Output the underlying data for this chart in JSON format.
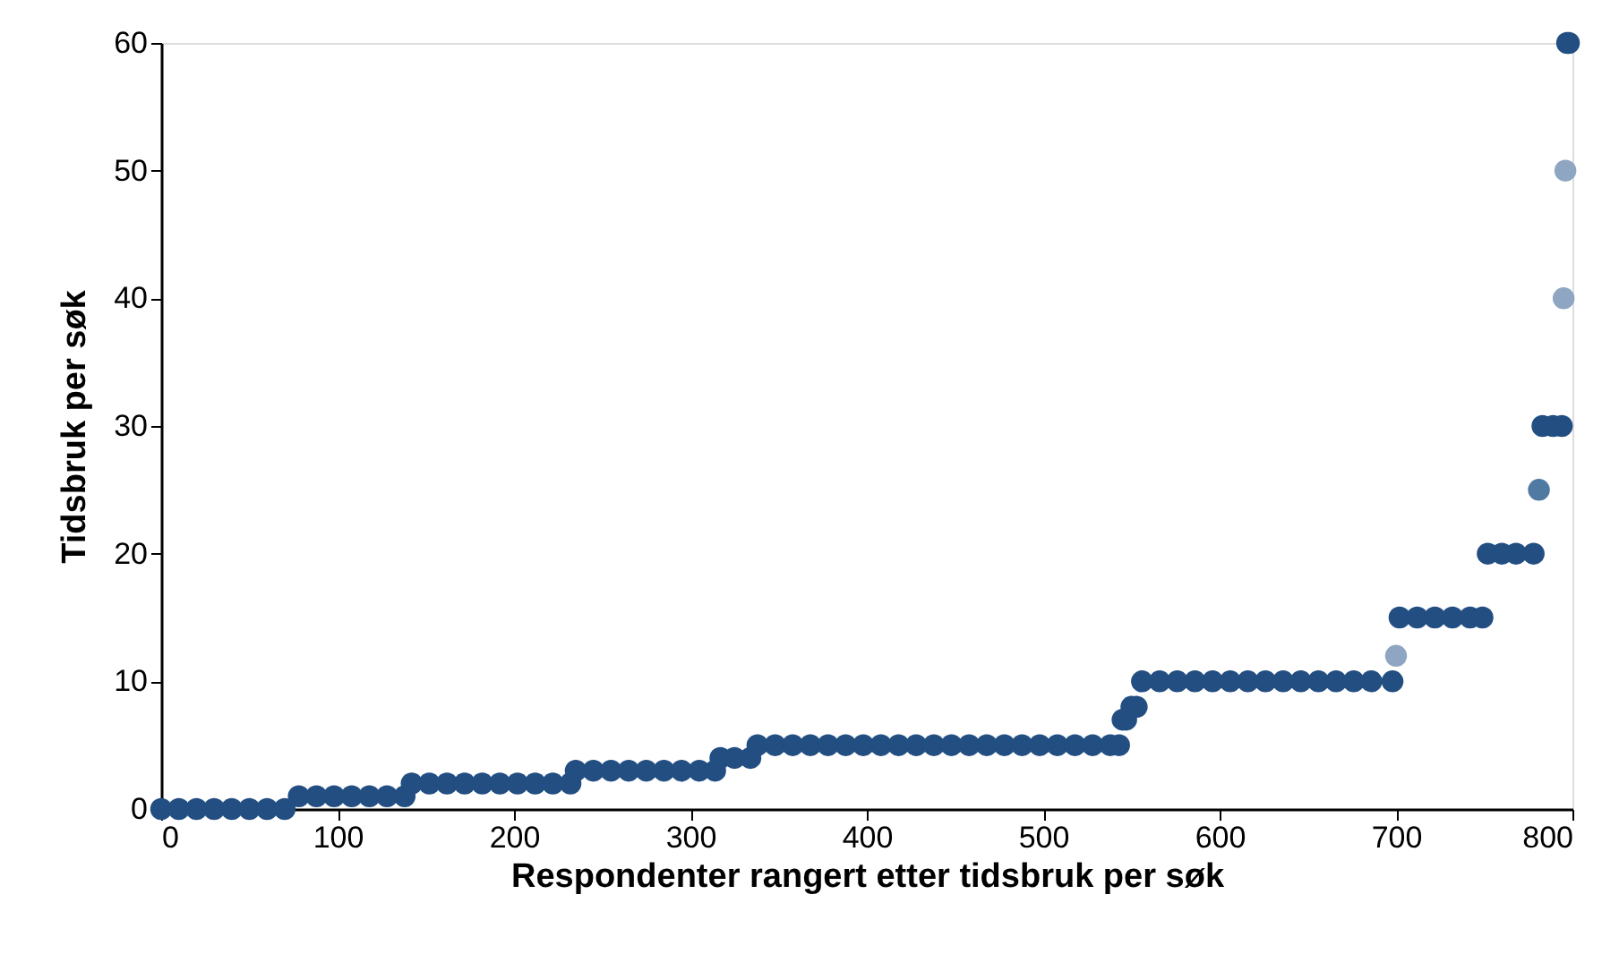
{
  "chart_data": {
    "type": "scatter",
    "xlabel": "Respondenter rangert etter tidsbruk per søk",
    "ylabel": "Tidsbruk per søk",
    "xlim": [
      0,
      800
    ],
    "xticks": [
      0,
      100,
      200,
      300,
      400,
      500,
      600,
      700,
      800
    ],
    "ylim": [
      0,
      60
    ],
    "yticks": [
      0,
      10,
      20,
      30,
      40,
      50,
      60
    ],
    "grid": false,
    "series": [
      {
        "color": "#224e82",
        "x": [
          0,
          10,
          20,
          30,
          40,
          50,
          60,
          70,
          78,
          88,
          98,
          108,
          118,
          128,
          138,
          142,
          152,
          162,
          172,
          182,
          192,
          202,
          212,
          222,
          232,
          235,
          245,
          255,
          265,
          275,
          285,
          295,
          305,
          314,
          317,
          325,
          334,
          338,
          348,
          358,
          368,
          378,
          388,
          398,
          408,
          418,
          428,
          438,
          448,
          458,
          468,
          478,
          488,
          498,
          508,
          518,
          528,
          538,
          543,
          545,
          547,
          550,
          553,
          556,
          566,
          576,
          586,
          596,
          606,
          616,
          626,
          636,
          646,
          656,
          666,
          676,
          686,
          698,
          702,
          712,
          722,
          732,
          742,
          749,
          752,
          760,
          768,
          778,
          783,
          789,
          794,
          797,
          798
        ],
        "values": [
          0,
          0,
          0,
          0,
          0,
          0,
          0,
          0,
          1,
          1,
          1,
          1,
          1,
          1,
          1,
          2,
          2,
          2,
          2,
          2,
          2,
          2,
          2,
          2,
          2,
          3,
          3,
          3,
          3,
          3,
          3,
          3,
          3,
          3,
          4,
          4,
          4,
          5,
          5,
          5,
          5,
          5,
          5,
          5,
          5,
          5,
          5,
          5,
          5,
          5,
          5,
          5,
          5,
          5,
          5,
          5,
          5,
          5,
          5,
          7,
          7,
          8,
          8,
          10,
          10,
          10,
          10,
          10,
          10,
          10,
          10,
          10,
          10,
          10,
          10,
          10,
          10,
          10,
          15,
          15,
          15,
          15,
          15,
          15,
          20,
          20,
          20,
          20,
          30,
          30,
          30,
          60,
          60
        ]
      },
      {
        "color": "#8fa6c2",
        "x": [
          700,
          795,
          796
        ],
        "values": [
          12,
          40,
          50
        ]
      },
      {
        "color": "#517aa3",
        "x": [
          781
        ],
        "values": [
          25
        ]
      }
    ]
  }
}
